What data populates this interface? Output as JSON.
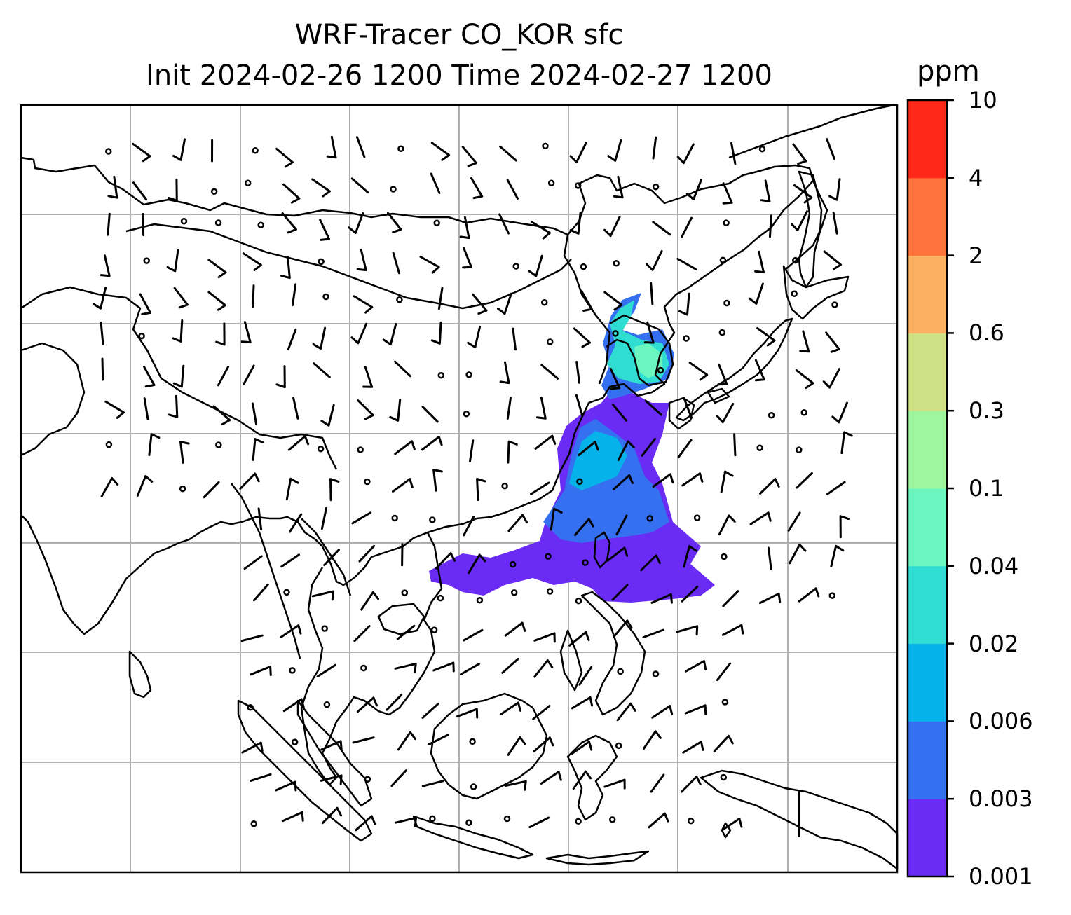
{
  "title": {
    "line1": "WRF-Tracer CO_KOR sfc",
    "line2": "Init 2024-02-26 1200 Time 2024-02-27 1200"
  },
  "colorbar": {
    "unit": "ppm",
    "levels": [
      "0.001",
      "0.003",
      "0.006",
      "0.02",
      "0.04",
      "0.1",
      "0.3",
      "0.6",
      "2",
      "4",
      "10"
    ],
    "colors": [
      "#6a2cf5",
      "#3470f0",
      "#06b2ea",
      "#30ddd2",
      "#6bf6bf",
      "#9ef79e",
      "#cfe085",
      "#fcb061",
      "#ff733c",
      "#ff2818"
    ]
  },
  "map": {
    "coastline_color": "#000000",
    "gridline_color": "#b0b0b0",
    "wind_barb_color": "#000000",
    "plume_description_colors": [
      "#6a2cf5",
      "#3470f0",
      "#06b2ea",
      "#30ddd2",
      "#6bf6bf"
    ]
  }
}
